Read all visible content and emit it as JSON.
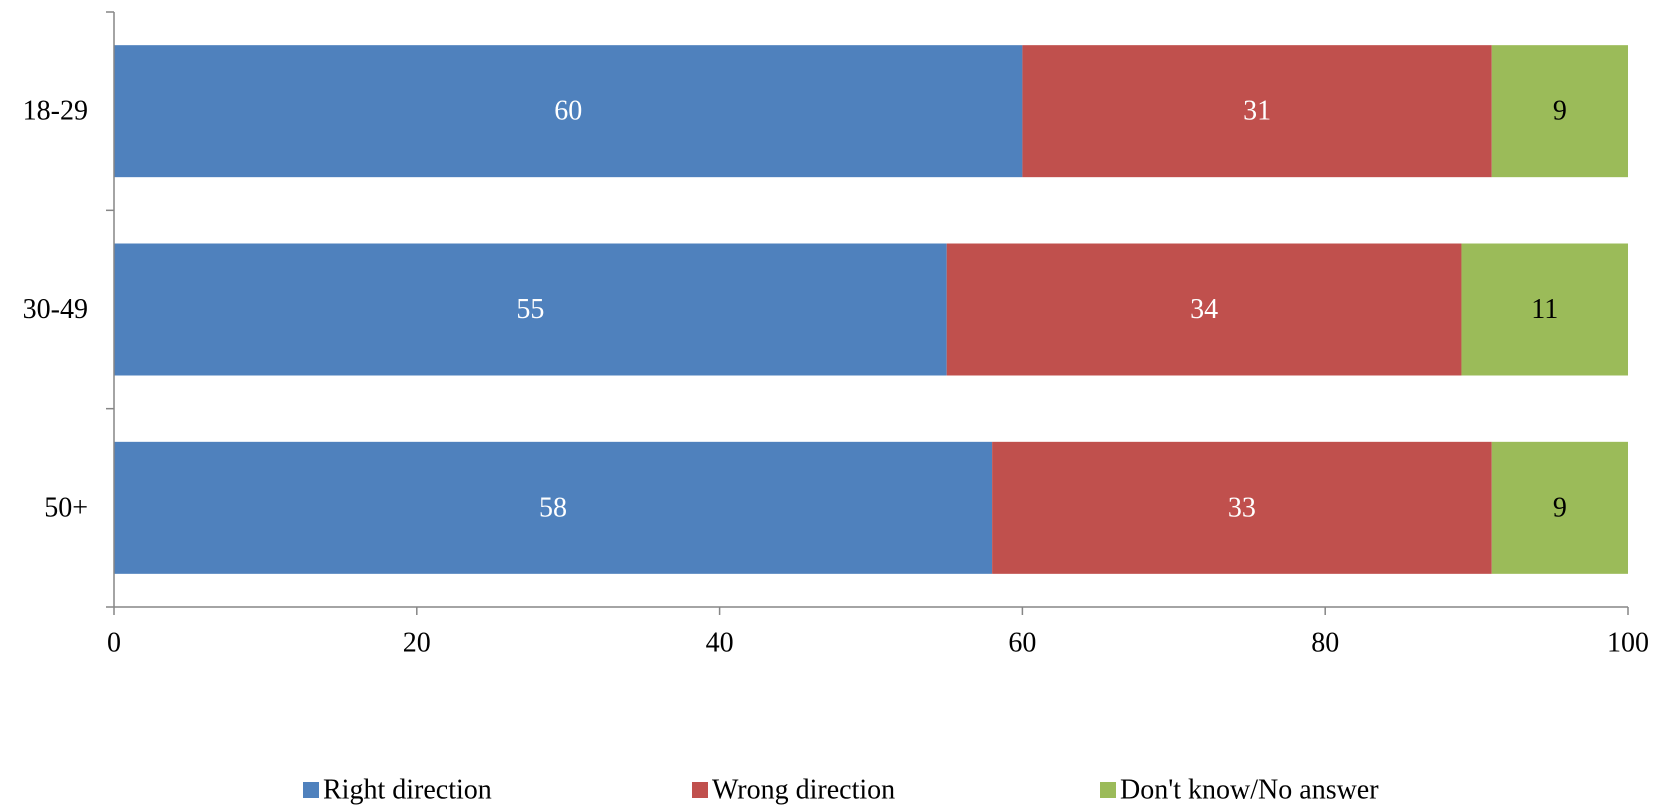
{
  "chart_data": {
    "type": "bar",
    "orientation": "horizontal",
    "stacked": true,
    "categories": [
      "18-29",
      "30-49",
      "50+"
    ],
    "series": [
      {
        "name": "Right direction",
        "values": [
          60,
          55,
          58
        ],
        "color": "#4F81BD",
        "label_color": "#FFFFFF"
      },
      {
        "name": "Wrong direction",
        "values": [
          31,
          34,
          33
        ],
        "color": "#C0504D",
        "label_color": "#FFFFFF"
      },
      {
        "name": "Don't know/No answer",
        "values": [
          9,
          11,
          9
        ],
        "color": "#9BBB59",
        "label_color": "#000000"
      }
    ],
    "xlim": [
      0,
      100
    ],
    "xticks": [
      0,
      20,
      40,
      60,
      80,
      100
    ],
    "grid": false,
    "legend_position": "bottom",
    "axis_color": "#868686"
  }
}
